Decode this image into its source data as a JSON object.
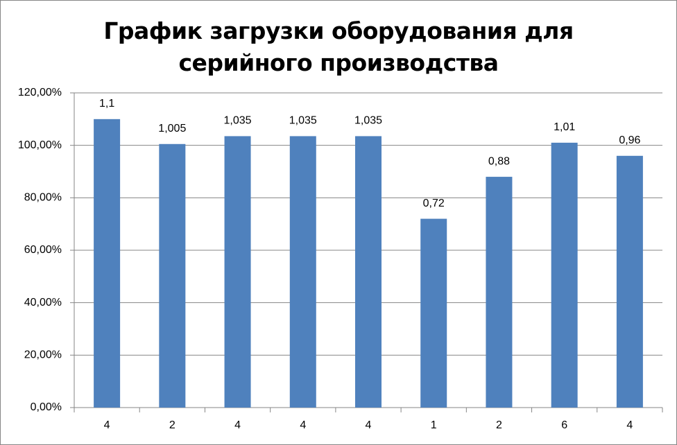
{
  "chart_data": {
    "type": "bar",
    "title": "График загрузки оборудования для серийного производства",
    "categories": [
      "4",
      "2",
      "4",
      "4",
      "4",
      "1",
      "2",
      "6",
      "4"
    ],
    "values": [
      110,
      100.5,
      103.5,
      103.5,
      103.5,
      72,
      88,
      101,
      96
    ],
    "value_labels": [
      "1,1",
      "1,005",
      "1,035",
      "1,035",
      "1,035",
      "0,72",
      "0,88",
      "1,01",
      "0,96"
    ],
    "color": "#4f81bd",
    "ylim": [
      0,
      120
    ],
    "yticks": [
      {
        "value": 0,
        "label": "0,00%"
      },
      {
        "value": 20,
        "label": "20,00%"
      },
      {
        "value": 40,
        "label": "40,00%"
      },
      {
        "value": 60,
        "label": "60,00%"
      },
      {
        "value": 80,
        "label": "80,00%"
      },
      {
        "value": 100,
        "label": "100,00%"
      },
      {
        "value": 120,
        "label": "120,00%"
      }
    ],
    "grid": true
  }
}
